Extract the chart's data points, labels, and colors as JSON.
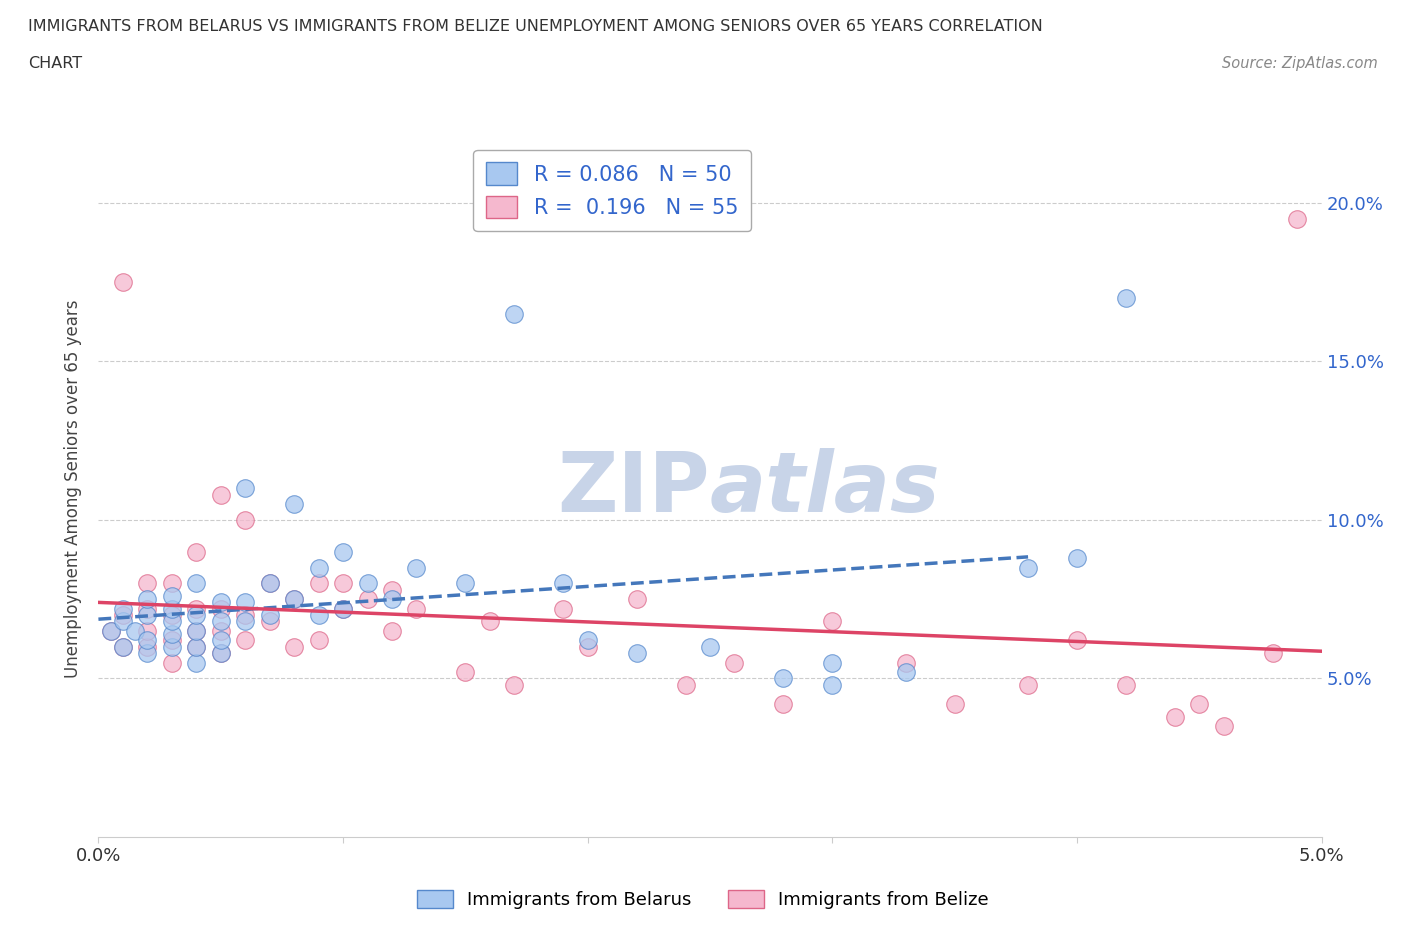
{
  "title_line1": "IMMIGRANTS FROM BELARUS VS IMMIGRANTS FROM BELIZE UNEMPLOYMENT AMONG SENIORS OVER 65 YEARS CORRELATION",
  "title_line2": "CHART",
  "source_text": "Source: ZipAtlas.com",
  "ylabel": "Unemployment Among Seniors over 65 years",
  "xlim": [
    0.0,
    0.05
  ],
  "ylim": [
    0.0,
    0.22
  ],
  "ytick_positions": [
    0.0,
    0.05,
    0.1,
    0.15,
    0.2
  ],
  "xtick_positions": [
    0.0,
    0.01,
    0.02,
    0.03,
    0.04,
    0.05
  ],
  "xtick_labels": [
    "0.0%",
    "",
    "",
    "",
    "",
    "5.0%"
  ],
  "right_ytick_labels": [
    "20.0%",
    "15.0%",
    "10.0%",
    "5.0%"
  ],
  "belarus_color": "#a8c8f0",
  "belize_color": "#f5b8ce",
  "belarus_edge": "#5588cc",
  "belize_edge": "#dd6688",
  "trend_belarus_color": "#4477bb",
  "trend_belize_color": "#dd4466",
  "R_belarus": 0.086,
  "N_belarus": 50,
  "R_belize": 0.196,
  "N_belize": 55,
  "watermark_zip": "ZIP",
  "watermark_atlas": "atlas",
  "watermark_color": "#c8d4e8",
  "legend_label_belarus": "Immigrants from Belarus",
  "legend_label_belize": "Immigrants from Belize",
  "background_color": "#ffffff",
  "grid_color": "#cccccc",
  "stat_color": "#3366cc",
  "belarus_scatter_x": [
    0.0005,
    0.001,
    0.001,
    0.001,
    0.0015,
    0.002,
    0.002,
    0.002,
    0.002,
    0.003,
    0.003,
    0.003,
    0.003,
    0.003,
    0.004,
    0.004,
    0.004,
    0.004,
    0.004,
    0.005,
    0.005,
    0.005,
    0.005,
    0.006,
    0.006,
    0.006,
    0.007,
    0.007,
    0.008,
    0.008,
    0.009,
    0.009,
    0.01,
    0.01,
    0.011,
    0.012,
    0.013,
    0.015,
    0.017,
    0.019,
    0.02,
    0.022,
    0.025,
    0.028,
    0.03,
    0.03,
    0.033,
    0.038,
    0.04,
    0.042
  ],
  "belarus_scatter_y": [
    0.065,
    0.06,
    0.068,
    0.072,
    0.065,
    0.058,
    0.062,
    0.07,
    0.075,
    0.06,
    0.064,
    0.068,
    0.072,
    0.076,
    0.055,
    0.06,
    0.065,
    0.07,
    0.08,
    0.058,
    0.062,
    0.068,
    0.074,
    0.068,
    0.074,
    0.11,
    0.07,
    0.08,
    0.075,
    0.105,
    0.07,
    0.085,
    0.072,
    0.09,
    0.08,
    0.075,
    0.085,
    0.08,
    0.165,
    0.08,
    0.062,
    0.058,
    0.06,
    0.05,
    0.048,
    0.055,
    0.052,
    0.085,
    0.088,
    0.17
  ],
  "belize_scatter_x": [
    0.0005,
    0.001,
    0.001,
    0.001,
    0.002,
    0.002,
    0.002,
    0.002,
    0.003,
    0.003,
    0.003,
    0.003,
    0.004,
    0.004,
    0.004,
    0.004,
    0.005,
    0.005,
    0.005,
    0.005,
    0.006,
    0.006,
    0.006,
    0.007,
    0.007,
    0.008,
    0.008,
    0.009,
    0.009,
    0.01,
    0.01,
    0.011,
    0.012,
    0.012,
    0.013,
    0.015,
    0.016,
    0.017,
    0.019,
    0.02,
    0.022,
    0.024,
    0.026,
    0.028,
    0.03,
    0.033,
    0.035,
    0.038,
    0.04,
    0.042,
    0.044,
    0.045,
    0.046,
    0.048,
    0.049
  ],
  "belize_scatter_y": [
    0.065,
    0.06,
    0.07,
    0.175,
    0.06,
    0.065,
    0.072,
    0.08,
    0.055,
    0.062,
    0.07,
    0.08,
    0.06,
    0.065,
    0.072,
    0.09,
    0.058,
    0.065,
    0.072,
    0.108,
    0.062,
    0.07,
    0.1,
    0.068,
    0.08,
    0.06,
    0.075,
    0.062,
    0.08,
    0.072,
    0.08,
    0.075,
    0.065,
    0.078,
    0.072,
    0.052,
    0.068,
    0.048,
    0.072,
    0.06,
    0.075,
    0.048,
    0.055,
    0.042,
    0.068,
    0.055,
    0.042,
    0.048,
    0.062,
    0.048,
    0.038,
    0.042,
    0.035,
    0.058,
    0.195
  ]
}
